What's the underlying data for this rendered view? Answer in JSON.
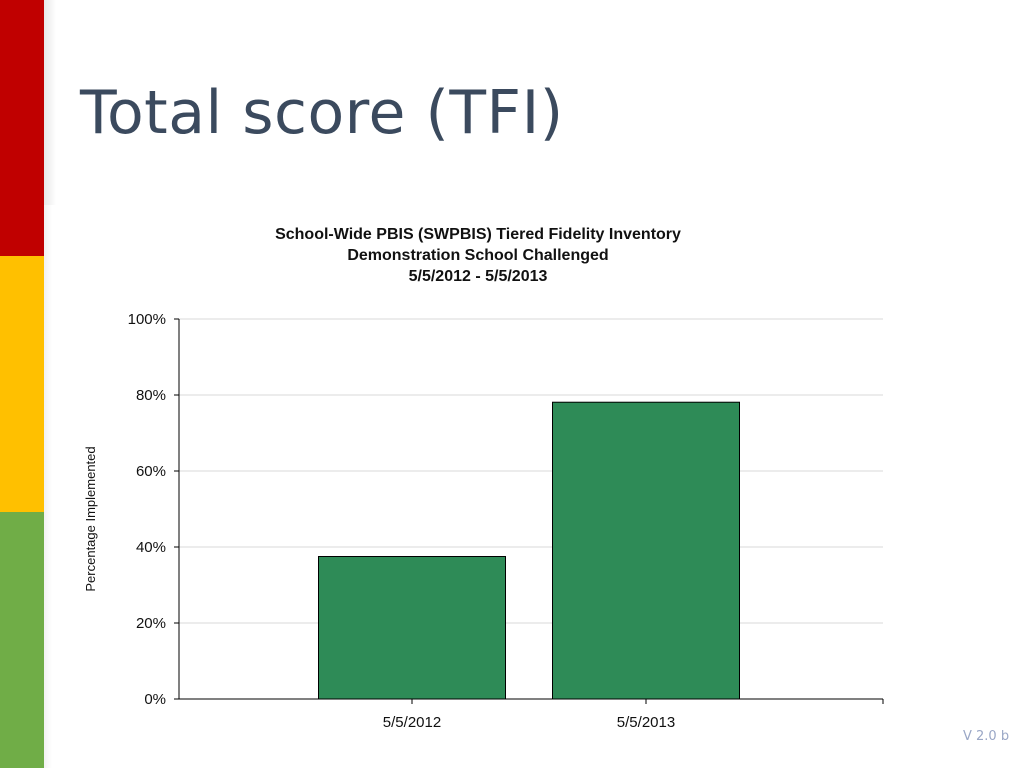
{
  "slide": {
    "title": "Total score (TFI)",
    "version": "V 2.0 b",
    "colors": {
      "red": "#c00000",
      "yellow": "#ffc000",
      "green": "#70ad47",
      "title": "#3b4a5e",
      "bar": "#2e8b57"
    }
  },
  "chart_data": {
    "type": "bar",
    "title": [
      "School-Wide PBIS (SWPBIS) Tiered Fidelity Inventory",
      "Demonstration School Challenged",
      "5/5/2012 - 5/5/2013"
    ],
    "categories": [
      "5/5/2012",
      "5/5/2013"
    ],
    "values": [
      37.5,
      78.1
    ],
    "xlabel": "",
    "ylabel": "Percentage Implemented",
    "ylim": [
      0,
      100
    ],
    "yticks": [
      "0%",
      "20%",
      "40%",
      "60%",
      "80%",
      "100%"
    ],
    "ytick_values": [
      0,
      20,
      40,
      60,
      80,
      100
    ],
    "grid": true,
    "bar_color": "#2e8b57"
  }
}
